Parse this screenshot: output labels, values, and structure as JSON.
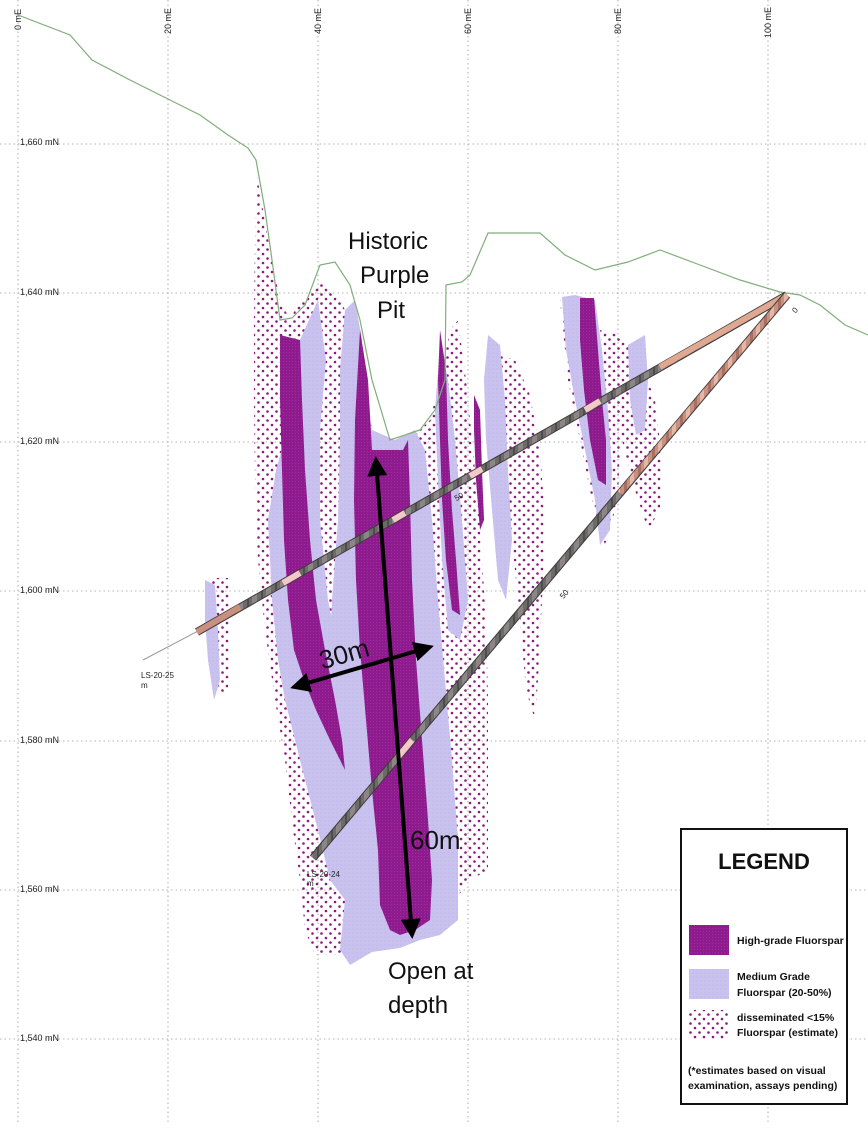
{
  "grid": {
    "easting_labels": [
      "0 mE",
      "20 mE",
      "40 mE",
      "60 mE",
      "80 mE",
      "100 mE"
    ],
    "northing_labels": [
      "1,660 mN",
      "1,640 mN",
      "1,620 mN",
      "1,600 mN",
      "1,580 mN",
      "1,560 mN",
      "1,540 mN"
    ]
  },
  "annotations": {
    "pit_line1": "Historic",
    "pit_line2": "Purple",
    "pit_line3": "Pit",
    "width": "30m",
    "length": "60m",
    "open_line1": "Open at",
    "open_line2": "depth"
  },
  "drillholes": {
    "hole_a": "LS-20-25",
    "hole_a_sub": "m",
    "hole_b": "LS-20-24",
    "hole_b_sub": "m",
    "collar_label": "0",
    "depth_label": "50",
    "depth_label_b": "50"
  },
  "legend": {
    "title": "LEGEND",
    "high_grade": "High-grade Fluorspar",
    "medium_line1": "Medium Grade",
    "medium_line2": "Fluorspar (20-50%)",
    "dissem_line1": "disseminated <15%",
    "dissem_line2": "Fluorspar (estimate)",
    "note_line1": "(*estimates based on visual",
    "note_line2": "examination, assays pending)"
  },
  "colors": {
    "high_grade": "#8e1a8e",
    "medium_grade": "#c9c2ef",
    "disseminated": "#8a1a7a",
    "topography": "#7fae7a"
  }
}
